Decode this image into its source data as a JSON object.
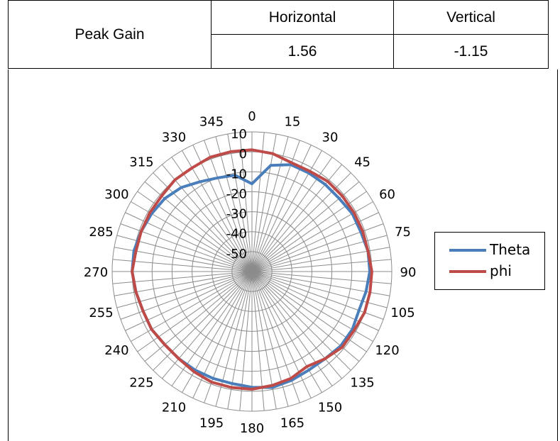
{
  "table": {
    "row_label": "Peak Gain",
    "headers": [
      "Horizontal",
      "Vertical"
    ],
    "values": [
      "1.56",
      "-1.15"
    ]
  },
  "chart_data": {
    "type": "polar-line",
    "angle_labels": [
      "0",
      "15",
      "30",
      "45",
      "60",
      "75",
      "90",
      "105",
      "120",
      "135",
      "150",
      "165",
      "180",
      "195",
      "210",
      "225",
      "240",
      "255",
      "270",
      "285",
      "300",
      "315",
      "330",
      "345"
    ],
    "radial_ticks": [
      10,
      0,
      -10,
      -20,
      -30,
      -40,
      -50
    ],
    "rlim": [
      -60,
      10
    ],
    "angle_step_deg": 5,
    "grid": true,
    "legend_position": "right",
    "series": [
      {
        "name": "Theta",
        "color": "#4a7ebb",
        "angles": [
          0,
          10,
          20,
          30,
          40,
          50,
          60,
          70,
          80,
          90,
          100,
          110,
          120,
          130,
          140,
          150,
          160,
          170,
          180,
          190,
          200,
          210,
          220,
          230,
          240,
          250,
          260,
          270,
          280,
          290,
          300,
          310,
          320,
          330,
          340,
          350
        ],
        "values": [
          -16,
          -6,
          -3,
          -3,
          -3,
          -3,
          -2,
          -2,
          -1,
          -1,
          -2,
          -3,
          -2,
          -2,
          -3,
          -3,
          -2,
          -1,
          -2,
          -3,
          -3,
          -3,
          -3,
          -3,
          -2,
          -2,
          -1,
          0,
          0,
          -1,
          -2,
          -3,
          -5,
          -8,
          -10,
          -11
        ]
      },
      {
        "name": "phi",
        "color": "#be4b48",
        "angles": [
          0,
          10,
          20,
          30,
          40,
          50,
          60,
          70,
          80,
          90,
          100,
          110,
          120,
          130,
          140,
          150,
          160,
          170,
          180,
          190,
          200,
          210,
          220,
          230,
          240,
          250,
          260,
          270,
          280,
          290,
          300,
          310,
          320,
          330,
          340,
          350
        ],
        "values": [
          1,
          0,
          -2,
          -2,
          -1,
          -1,
          -1,
          -1,
          -1,
          0,
          0,
          0,
          -1,
          -1,
          -3,
          -5,
          -3,
          -2,
          -1,
          -1,
          -1,
          -2,
          -3,
          -3,
          -2,
          -2,
          -1,
          0,
          -1,
          -1,
          -1,
          -1,
          0,
          0,
          1,
          1
        ]
      }
    ]
  }
}
